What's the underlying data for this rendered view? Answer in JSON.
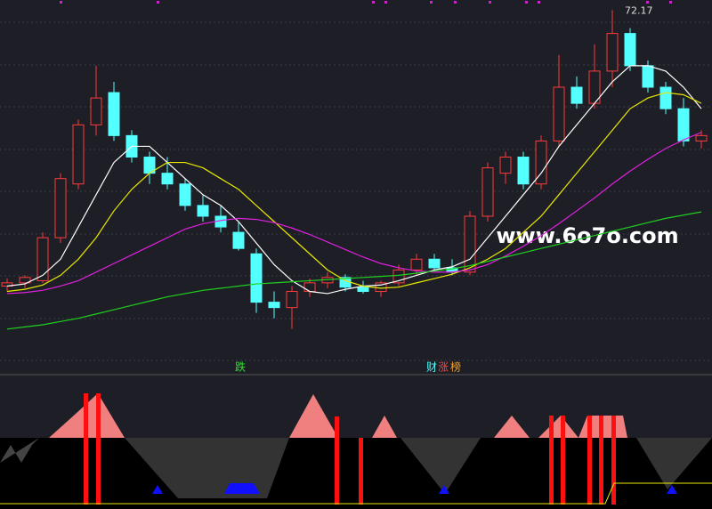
{
  "chart_data": {
    "type": "candlestick",
    "annotation": "72.17",
    "watermark": "www.6o7o.com",
    "markers": [
      "跌",
      "财",
      "涨",
      "榜"
    ],
    "ylim": [
      40,
      72.7
    ],
    "up_color": "#ff3b3b",
    "down_color": "#54ffff",
    "open": [
      46.5,
      46.8,
      47.0,
      51.0,
      56.0,
      61.5,
      64.5,
      60.5,
      58.5,
      57.0,
      56.0,
      54.0,
      53.0,
      51.5,
      49.5,
      45.0,
      44.5,
      46.0,
      46.8,
      47.3,
      46.4,
      46.0,
      46.8,
      48.0,
      49.0,
      48.2,
      47.8,
      53.0,
      57.0,
      58.5,
      56.0,
      60.0,
      65.0,
      63.5,
      66.5,
      70.0,
      67.0,
      65.0,
      63.0,
      60.0
    ],
    "high": [
      47.2,
      47.5,
      51.5,
      57.0,
      62.0,
      67.0,
      65.5,
      61.0,
      59.0,
      58.5,
      56.5,
      55.0,
      54.0,
      52.5,
      50.0,
      46.0,
      46.5,
      47.2,
      47.8,
      47.6,
      47.0,
      47.0,
      48.5,
      49.5,
      49.5,
      49.0,
      53.5,
      58.0,
      59.0,
      59.0,
      60.5,
      68.0,
      66.0,
      69.0,
      72.17,
      70.5,
      67.5,
      65.5,
      64.0,
      61.0
    ],
    "low": [
      46.0,
      46.3,
      46.8,
      50.5,
      55.5,
      60.5,
      60.0,
      58.0,
      56.0,
      55.5,
      53.5,
      52.5,
      51.5,
      49.8,
      44.0,
      43.5,
      42.5,
      45.5,
      46.3,
      46.0,
      45.8,
      45.5,
      46.5,
      47.5,
      48.0,
      47.5,
      47.5,
      52.5,
      56.0,
      55.5,
      55.5,
      59.5,
      63.0,
      63.0,
      65.0,
      66.5,
      64.5,
      62.5,
      59.5,
      59.3
    ],
    "close": [
      46.8,
      47.3,
      51.0,
      56.5,
      61.5,
      64.0,
      60.5,
      58.5,
      57.0,
      56.0,
      54.0,
      53.0,
      52.0,
      50.0,
      45.0,
      44.5,
      46.0,
      46.8,
      47.3,
      46.4,
      46.0,
      46.8,
      48.0,
      49.0,
      48.2,
      47.8,
      53.0,
      57.5,
      58.5,
      56.0,
      60.0,
      65.0,
      63.5,
      66.5,
      70.0,
      67.0,
      65.0,
      63.0,
      60.0,
      60.5
    ],
    "series": [
      {
        "color": "#ffffff",
        "values": [
          46.5,
          46.7,
          47.5,
          49,
          52,
          55,
          58,
          59.5,
          59.5,
          58,
          56.5,
          55,
          54,
          52.5,
          50.5,
          48.5,
          47,
          46,
          45.8,
          46.2,
          46.5,
          46.6,
          47,
          47.5,
          48,
          48.3,
          49,
          51,
          53,
          55,
          57,
          59.5,
          61.5,
          63.5,
          65.5,
          67,
          67,
          66.5,
          65,
          63
        ]
      },
      {
        "color": "#e8e800",
        "values": [
          46,
          46.2,
          46.6,
          47.5,
          49,
          51,
          53.5,
          55.5,
          57,
          58,
          58,
          57.5,
          56.5,
          55.5,
          54,
          52.5,
          51,
          49.5,
          48,
          47,
          46.5,
          46.3,
          46.4,
          46.8,
          47.2,
          47.6,
          48.2,
          49,
          50,
          51.5,
          53,
          55,
          57,
          59,
          61,
          63,
          64,
          64.5,
          64.3,
          63.5
        ]
      },
      {
        "color": "#e020e0",
        "values": [
          45.8,
          45.9,
          46.1,
          46.5,
          47,
          47.8,
          48.6,
          49.4,
          50.2,
          51,
          51.8,
          52.3,
          52.6,
          52.8,
          52.7,
          52.4,
          51.9,
          51.3,
          50.6,
          49.9,
          49.2,
          48.6,
          48.2,
          47.9,
          47.8,
          47.8,
          48,
          48.5,
          49.3,
          50.2,
          51.2,
          52.3,
          53.5,
          54.7,
          56,
          57.2,
          58.3,
          59.3,
          60.1,
          60.8
        ]
      },
      {
        "color": "#20d020",
        "values": [
          42.5,
          42.7,
          42.9,
          43.2,
          43.5,
          43.9,
          44.3,
          44.7,
          45.1,
          45.5,
          45.8,
          46.1,
          46.3,
          46.5,
          46.7,
          46.8,
          46.9,
          47,
          47.1,
          47.2,
          47.3,
          47.4,
          47.5,
          47.7,
          47.9,
          48.1,
          48.4,
          48.8,
          49.2,
          49.6,
          50,
          50.4,
          50.8,
          51.2,
          51.6,
          52,
          52.4,
          52.8,
          53.1,
          53.4
        ]
      }
    ]
  }
}
